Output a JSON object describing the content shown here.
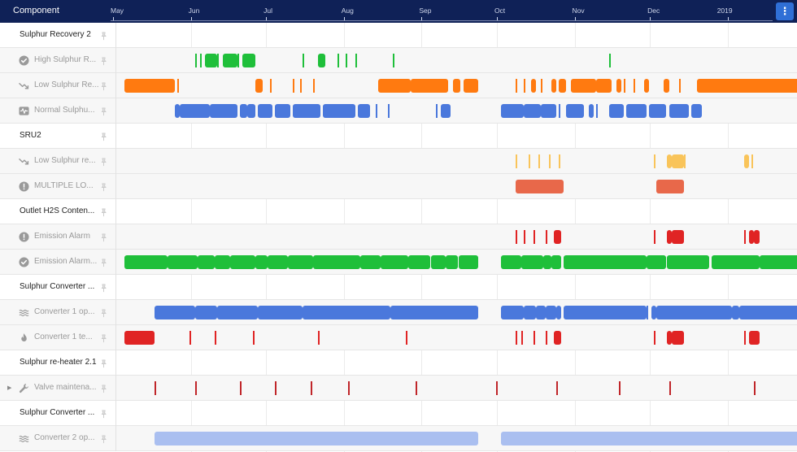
{
  "header": {
    "column_title": "Component",
    "months": [
      "May",
      "Jun",
      "Jul",
      "Aug",
      "Sep",
      "Oct",
      "Nov",
      "Dec",
      "2019"
    ],
    "menu_icon": "kebab-menu-icon",
    "menu_glyph": "⋮"
  },
  "colors": {
    "header_bg": "#0f2157",
    "green": "#1fbf3a",
    "orange": "#ff7a10",
    "blue": "#4a78dc",
    "light_orange": "#f9c45a",
    "salmon": "#e8684a",
    "red": "#e02424",
    "dark_red": "#c0262a",
    "light_blue": "#aabff0"
  },
  "timeline": {
    "start": "2018-05-01",
    "end": "2019-01-28"
  },
  "rows": [
    {
      "label": "Sulphur Recovery 2",
      "level": "main",
      "icon": ""
    },
    {
      "label": "High Sulphur R...",
      "level": "sub",
      "icon": "check-circle-icon",
      "color": "green",
      "marks": [
        [
          "2018-06-01",
          "2018-06-01"
        ],
        [
          "2018-06-03",
          "2018-06-03"
        ],
        [
          "2018-06-05",
          "2018-06-09"
        ],
        [
          "2018-06-10",
          "2018-06-10"
        ],
        [
          "2018-06-12",
          "2018-06-17"
        ],
        [
          "2018-06-18",
          "2018-06-18"
        ],
        [
          "2018-06-20",
          "2018-06-24"
        ],
        [
          "2018-07-14",
          "2018-07-14"
        ],
        [
          "2018-07-20",
          "2018-07-22"
        ],
        [
          "2018-07-28",
          "2018-07-28"
        ],
        [
          "2018-07-31",
          "2018-07-31"
        ],
        [
          "2018-08-04",
          "2018-08-04"
        ],
        [
          "2018-08-19",
          "2018-08-19"
        ],
        [
          "2018-11-13",
          "2018-11-13"
        ]
      ]
    },
    {
      "label": "Low Sulphur Re...",
      "level": "sub",
      "icon": "trend-down-icon",
      "color": "orange",
      "marks": [
        [
          "2018-05-04",
          "2018-05-23"
        ],
        [
          "2018-05-25",
          "2018-05-25"
        ],
        [
          "2018-06-25",
          "2018-06-27"
        ],
        [
          "2018-07-01",
          "2018-07-01"
        ],
        [
          "2018-07-10",
          "2018-07-10"
        ],
        [
          "2018-07-13",
          "2018-07-13"
        ],
        [
          "2018-07-18",
          "2018-07-18"
        ],
        [
          "2018-08-13",
          "2018-08-25"
        ],
        [
          "2018-08-26",
          "2018-09-09"
        ],
        [
          "2018-09-12",
          "2018-09-14"
        ],
        [
          "2018-09-16",
          "2018-09-21"
        ],
        [
          "2018-10-07",
          "2018-10-07"
        ],
        [
          "2018-10-10",
          "2018-10-10"
        ],
        [
          "2018-10-13",
          "2018-10-14"
        ],
        [
          "2018-10-17",
          "2018-10-17"
        ],
        [
          "2018-10-21",
          "2018-10-22"
        ],
        [
          "2018-10-24",
          "2018-10-26"
        ],
        [
          "2018-10-29",
          "2018-11-07"
        ],
        [
          "2018-11-08",
          "2018-11-13"
        ],
        [
          "2018-11-16",
          "2018-11-17"
        ],
        [
          "2018-11-19",
          "2018-11-19"
        ],
        [
          "2018-11-23",
          "2018-11-23"
        ],
        [
          "2018-11-27",
          "2018-11-28"
        ],
        [
          "2018-12-05",
          "2018-12-06"
        ],
        [
          "2018-12-11",
          "2018-12-11"
        ],
        [
          "2018-12-18",
          "2019-01-27"
        ]
      ]
    },
    {
      "label": "Normal Sulphu...",
      "level": "sub",
      "icon": "waveform-icon",
      "color": "blue",
      "marks": [
        [
          "2018-05-24",
          "2018-05-25"
        ],
        [
          "2018-05-26",
          "2018-06-06"
        ],
        [
          "2018-06-07",
          "2018-06-17"
        ],
        [
          "2018-06-19",
          "2018-06-21"
        ],
        [
          "2018-06-22",
          "2018-06-24"
        ],
        [
          "2018-06-26",
          "2018-07-01"
        ],
        [
          "2018-07-03",
          "2018-07-08"
        ],
        [
          "2018-07-10",
          "2018-07-20"
        ],
        [
          "2018-07-22",
          "2018-08-03"
        ],
        [
          "2018-08-05",
          "2018-08-09"
        ],
        [
          "2018-08-12",
          "2018-08-12"
        ],
        [
          "2018-08-17",
          "2018-08-17"
        ],
        [
          "2018-09-05",
          "2018-09-05"
        ],
        [
          "2018-09-07",
          "2018-09-10"
        ],
        [
          "2018-10-01",
          "2018-10-09"
        ],
        [
          "2018-10-10",
          "2018-10-16"
        ],
        [
          "2018-10-17",
          "2018-10-22"
        ],
        [
          "2018-10-24",
          "2018-10-24"
        ],
        [
          "2018-10-27",
          "2018-11-02"
        ],
        [
          "2018-11-05",
          "2018-11-06"
        ],
        [
          "2018-11-08",
          "2018-11-08"
        ],
        [
          "2018-11-13",
          "2018-11-18"
        ],
        [
          "2018-11-20",
          "2018-11-27"
        ],
        [
          "2018-11-29",
          "2018-12-05"
        ],
        [
          "2018-12-07",
          "2018-12-14"
        ],
        [
          "2018-12-16",
          "2018-12-19"
        ]
      ]
    },
    {
      "label": "SRU2",
      "level": "main",
      "icon": ""
    },
    {
      "label": "Low Sulphur re...",
      "level": "sub",
      "icon": "trend-down-icon",
      "color": "light_orange",
      "marks": [
        [
          "2018-10-07",
          "2018-10-07"
        ],
        [
          "2018-10-12",
          "2018-10-12"
        ],
        [
          "2018-10-16",
          "2018-10-16"
        ],
        [
          "2018-10-20",
          "2018-10-20"
        ],
        [
          "2018-10-24",
          "2018-10-24"
        ],
        [
          "2018-12-01",
          "2018-12-01"
        ],
        [
          "2018-12-06",
          "2018-12-07"
        ],
        [
          "2018-12-08",
          "2018-12-12"
        ],
        [
          "2018-12-13",
          "2018-12-13"
        ],
        [
          "2019-01-06",
          "2019-01-07"
        ],
        [
          "2019-01-09",
          "2019-01-09"
        ]
      ]
    },
    {
      "label": "MULTIPLE LO...",
      "level": "sub",
      "icon": "alert-circle-icon",
      "color": "salmon",
      "marks": [
        [
          "2018-10-07",
          "2018-10-25"
        ],
        [
          "2018-12-02",
          "2018-12-12"
        ]
      ]
    },
    {
      "label": "Outlet H2S Conten...",
      "level": "main",
      "icon": ""
    },
    {
      "label": "Emission Alarm",
      "level": "sub",
      "icon": "alert-circle-icon",
      "color": "red",
      "marks": [
        [
          "2018-10-07",
          "2018-10-07"
        ],
        [
          "2018-10-10",
          "2018-10-10"
        ],
        [
          "2018-10-14",
          "2018-10-14"
        ],
        [
          "2018-10-19",
          "2018-10-19"
        ],
        [
          "2018-10-22",
          "2018-10-24"
        ],
        [
          "2018-12-01",
          "2018-12-01"
        ],
        [
          "2018-12-06",
          "2018-12-07"
        ],
        [
          "2018-12-08",
          "2018-12-12"
        ],
        [
          "2019-01-06",
          "2019-01-06"
        ],
        [
          "2019-01-08",
          "2019-01-09"
        ],
        [
          "2019-01-10",
          "2019-01-11"
        ]
      ]
    },
    {
      "label": "Emission Alarm...",
      "level": "sub",
      "icon": "check-circle-icon",
      "color": "green",
      "marks": [
        [
          "2018-05-04",
          "2018-05-20"
        ],
        [
          "2018-05-21",
          "2018-06-01"
        ],
        [
          "2018-06-02",
          "2018-06-08"
        ],
        [
          "2018-06-09",
          "2018-06-14"
        ],
        [
          "2018-06-15",
          "2018-06-24"
        ],
        [
          "2018-06-25",
          "2018-06-29"
        ],
        [
          "2018-06-30",
          "2018-07-07"
        ],
        [
          "2018-07-08",
          "2018-07-17"
        ],
        [
          "2018-07-18",
          "2018-08-05"
        ],
        [
          "2018-08-06",
          "2018-08-13"
        ],
        [
          "2018-08-14",
          "2018-08-24"
        ],
        [
          "2018-08-25",
          "2018-09-02"
        ],
        [
          "2018-09-03",
          "2018-09-08"
        ],
        [
          "2018-09-09",
          "2018-09-13"
        ],
        [
          "2018-09-14",
          "2018-09-21"
        ],
        [
          "2018-10-01",
          "2018-10-08"
        ],
        [
          "2018-10-09",
          "2018-10-17"
        ],
        [
          "2018-10-18",
          "2018-10-20"
        ],
        [
          "2018-10-21",
          "2018-10-24"
        ],
        [
          "2018-10-26",
          "2018-11-27"
        ],
        [
          "2018-11-28",
          "2018-12-05"
        ],
        [
          "2018-12-06",
          "2018-12-22"
        ],
        [
          "2018-12-24",
          "2019-01-11"
        ],
        [
          "2019-01-12",
          "2019-01-27"
        ]
      ]
    },
    {
      "label": "Sulphur Converter ...",
      "level": "main",
      "icon": ""
    },
    {
      "label": "Converter 1 op...",
      "level": "sub",
      "icon": "waves-icon",
      "color": "blue",
      "marks": [
        [
          "2018-05-16",
          "2018-05-31"
        ],
        [
          "2018-06-01",
          "2018-06-09"
        ],
        [
          "2018-06-10",
          "2018-06-25"
        ],
        [
          "2018-06-26",
          "2018-07-13"
        ],
        [
          "2018-07-14",
          "2018-08-17"
        ],
        [
          "2018-08-18",
          "2018-09-21"
        ],
        [
          "2018-10-01",
          "2018-10-09"
        ],
        [
          "2018-10-10",
          "2018-10-14"
        ],
        [
          "2018-10-15",
          "2018-10-18"
        ],
        [
          "2018-10-19",
          "2018-10-22"
        ],
        [
          "2018-10-23",
          "2018-10-24"
        ],
        [
          "2018-10-26",
          "2018-11-27"
        ],
        [
          "2018-11-28",
          "2018-11-28"
        ],
        [
          "2018-11-30",
          "2018-12-01"
        ],
        [
          "2018-12-02",
          "2018-12-31"
        ],
        [
          "2019-01-01",
          "2019-01-03"
        ],
        [
          "2019-01-04",
          "2019-01-27"
        ]
      ]
    },
    {
      "label": "Converter 1 te...",
      "level": "sub",
      "icon": "flame-icon",
      "color": "red",
      "marks": [
        [
          "2018-05-04",
          "2018-05-15"
        ],
        [
          "2018-05-30",
          "2018-05-30"
        ],
        [
          "2018-06-09",
          "2018-06-09"
        ],
        [
          "2018-06-24",
          "2018-06-24"
        ],
        [
          "2018-07-20",
          "2018-07-20"
        ],
        [
          "2018-08-24",
          "2018-08-24"
        ],
        [
          "2018-10-07",
          "2018-10-07"
        ],
        [
          "2018-10-09",
          "2018-10-09"
        ],
        [
          "2018-10-14",
          "2018-10-14"
        ],
        [
          "2018-10-19",
          "2018-10-19"
        ],
        [
          "2018-10-22",
          "2018-10-24"
        ],
        [
          "2018-12-01",
          "2018-12-01"
        ],
        [
          "2018-12-06",
          "2018-12-07"
        ],
        [
          "2018-12-08",
          "2018-12-12"
        ],
        [
          "2019-01-06",
          "2019-01-06"
        ],
        [
          "2019-01-08",
          "2019-01-11"
        ]
      ]
    },
    {
      "label": "Sulphur re-heater 2.1",
      "level": "main",
      "icon": ""
    },
    {
      "label": "Valve maintena...",
      "level": "sub",
      "icon": "wrench-icon",
      "color": "dark_red",
      "expandable": true,
      "marks": [
        [
          "2018-05-16",
          "2018-05-16"
        ],
        [
          "2018-06-01",
          "2018-06-01"
        ],
        [
          "2018-06-19",
          "2018-06-19"
        ],
        [
          "2018-07-03",
          "2018-07-03"
        ],
        [
          "2018-07-17",
          "2018-07-17"
        ],
        [
          "2018-08-01",
          "2018-08-01"
        ],
        [
          "2018-08-28",
          "2018-08-28"
        ],
        [
          "2018-09-29",
          "2018-09-29"
        ],
        [
          "2018-10-23",
          "2018-10-23"
        ],
        [
          "2018-11-17",
          "2018-11-17"
        ],
        [
          "2018-12-07",
          "2018-12-07"
        ],
        [
          "2019-01-10",
          "2019-01-10"
        ]
      ]
    },
    {
      "label": "Sulphur Converter ...",
      "level": "main",
      "icon": ""
    },
    {
      "label": "Converter 2 op...",
      "level": "sub",
      "icon": "waves-icon",
      "color": "light_blue",
      "marks": [
        [
          "2018-05-16",
          "2018-09-21"
        ],
        [
          "2018-10-01",
          "2019-01-27"
        ]
      ]
    }
  ]
}
